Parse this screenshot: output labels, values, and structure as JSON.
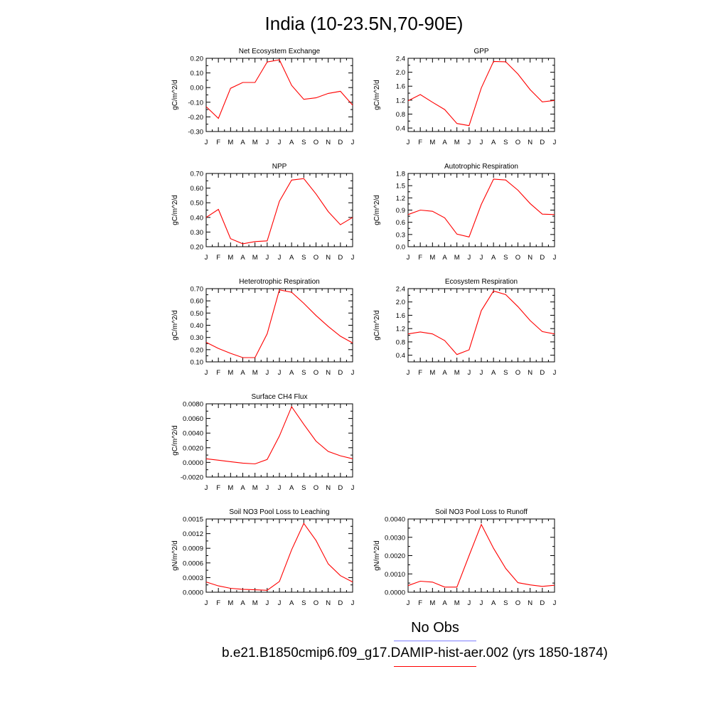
{
  "title": "India (10-23.5N,70-90E)",
  "colors": {
    "model_line": "#ff0000",
    "obs_line": "#8080ff",
    "axis": "#000000"
  },
  "legend": {
    "obs_label": "No Obs",
    "model_label": "b.e21.B1850cmip6.f09_g17.DAMIP-hist-aer.002 (yrs 1850-1874)"
  },
  "chart_data": [
    {
      "type": "line",
      "title": "Net Ecosystem Exchange",
      "ylabel": "gC/m^2/d",
      "x": [
        "J",
        "F",
        "M",
        "A",
        "M",
        "J",
        "J",
        "A",
        "S",
        "O",
        "N",
        "D",
        "J"
      ],
      "ylim": [
        -0.3,
        0.2
      ],
      "yticks": [
        "-0.30",
        "-0.20",
        "-0.10",
        "0.00",
        "0.10",
        "0.20"
      ],
      "series": [
        {
          "values": [
            -0.13,
            -0.21,
            -0.005,
            0.035,
            0.035,
            0.175,
            0.19,
            0.015,
            -0.08,
            -0.07,
            -0.04,
            -0.025,
            -0.12
          ]
        }
      ]
    },
    {
      "type": "line",
      "title": "GPP",
      "ylabel": "gC/m^2/d",
      "x": [
        "J",
        "F",
        "M",
        "A",
        "M",
        "J",
        "J",
        "A",
        "S",
        "O",
        "N",
        "D",
        "J"
      ],
      "ylim": [
        0.3,
        2.4
      ],
      "yticks": [
        "0.4",
        "0.8",
        "1.2",
        "1.6",
        "2.0",
        "2.4"
      ],
      "series": [
        {
          "values": [
            1.18,
            1.36,
            1.14,
            0.93,
            0.53,
            0.47,
            1.55,
            2.31,
            2.3,
            1.95,
            1.5,
            1.15,
            1.19
          ]
        }
      ]
    },
    {
      "type": "line",
      "title": "NPP",
      "ylabel": "gC/m^2/d",
      "x": [
        "J",
        "F",
        "M",
        "A",
        "M",
        "J",
        "J",
        "A",
        "S",
        "O",
        "N",
        "D",
        "J"
      ],
      "ylim": [
        0.2,
        0.7
      ],
      "yticks": [
        "0.20",
        "0.30",
        "0.40",
        "0.50",
        "0.60",
        "0.70"
      ],
      "series": [
        {
          "values": [
            0.4,
            0.455,
            0.255,
            0.22,
            0.235,
            0.24,
            0.51,
            0.655,
            0.665,
            0.56,
            0.44,
            0.35,
            0.4
          ]
        }
      ]
    },
    {
      "type": "line",
      "title": "Autotrophic Respiration",
      "ylabel": "gC/m^2/d",
      "x": [
        "J",
        "F",
        "M",
        "A",
        "M",
        "J",
        "J",
        "A",
        "S",
        "O",
        "N",
        "D",
        "J"
      ],
      "ylim": [
        0.0,
        1.8
      ],
      "yticks": [
        "0.0",
        "0.3",
        "0.6",
        "0.9",
        "1.2",
        "1.5",
        "1.8"
      ],
      "series": [
        {
          "values": [
            0.79,
            0.9,
            0.87,
            0.71,
            0.31,
            0.24,
            1.04,
            1.66,
            1.64,
            1.39,
            1.06,
            0.8,
            0.79
          ]
        }
      ]
    },
    {
      "type": "line",
      "title": "Heterotrophic Respiration",
      "ylabel": "gC/m^2/d",
      "x": [
        "J",
        "F",
        "M",
        "A",
        "M",
        "J",
        "J",
        "A",
        "S",
        "O",
        "N",
        "D",
        "J"
      ],
      "ylim": [
        0.1,
        0.7
      ],
      "yticks": [
        "0.10",
        "0.20",
        "0.30",
        "0.40",
        "0.50",
        "0.60",
        "0.70"
      ],
      "series": [
        {
          "values": [
            0.26,
            0.21,
            0.17,
            0.135,
            0.135,
            0.33,
            0.69,
            0.67,
            0.58,
            0.48,
            0.39,
            0.31,
            0.255
          ]
        }
      ]
    },
    {
      "type": "line",
      "title": "Ecosystem Respiration",
      "ylabel": "gC/m^2/d",
      "x": [
        "J",
        "F",
        "M",
        "A",
        "M",
        "J",
        "J",
        "A",
        "S",
        "O",
        "N",
        "D",
        "J"
      ],
      "ylim": [
        0.2,
        2.4
      ],
      "yticks": [
        "0.4",
        "0.8",
        "1.2",
        "1.6",
        "2.0",
        "2.4"
      ],
      "series": [
        {
          "values": [
            1.04,
            1.1,
            1.04,
            0.84,
            0.42,
            0.56,
            1.74,
            2.33,
            2.22,
            1.86,
            1.44,
            1.11,
            1.04
          ]
        }
      ]
    },
    {
      "type": "line",
      "title": "Surface CH4 Flux",
      "ylabel": "gC/m^2/d",
      "x": [
        "J",
        "F",
        "M",
        "A",
        "M",
        "J",
        "J",
        "A",
        "S",
        "O",
        "N",
        "D",
        "J"
      ],
      "ylim": [
        -0.002,
        0.008
      ],
      "yticks": [
        "-0.0020",
        "0.0000",
        "0.0020",
        "0.0040",
        "0.0060",
        "0.0080"
      ],
      "series": [
        {
          "values": [
            0.0005,
            0.0003,
            0.0001,
            -0.0001,
            -0.0002,
            0.0004,
            0.0036,
            0.0076,
            0.0052,
            0.0029,
            0.0015,
            0.0009,
            0.0005
          ]
        }
      ]
    },
    {
      "type": "line",
      "title": "Soil NO3 Pool Loss to Leaching",
      "ylabel": "gN/m^2/d",
      "x": [
        "J",
        "F",
        "M",
        "A",
        "M",
        "J",
        "J",
        "A",
        "S",
        "O",
        "N",
        "D",
        "J"
      ],
      "ylim": [
        0.0,
        0.0015
      ],
      "yticks": [
        "0.0000",
        "0.0003",
        "0.0006",
        "0.0009",
        "0.0012",
        "0.0015"
      ],
      "series": [
        {
          "values": [
            0.00021,
            0.00013,
            8e-05,
            6e-05,
            5e-05,
            4e-05,
            0.00022,
            0.00087,
            0.00141,
            0.00106,
            0.00058,
            0.00034,
            0.00021
          ]
        }
      ]
    },
    {
      "type": "line",
      "title": "Soil NO3 Pool Loss to Runoff",
      "ylabel": "gN/m^2/d",
      "x": [
        "J",
        "F",
        "M",
        "A",
        "M",
        "J",
        "J",
        "A",
        "S",
        "O",
        "N",
        "D",
        "J"
      ],
      "ylim": [
        0.0,
        0.004
      ],
      "yticks": [
        "0.0000",
        "0.0010",
        "0.0020",
        "0.0030",
        "0.0040"
      ],
      "series": [
        {
          "values": [
            0.00036,
            0.0006,
            0.00055,
            0.00028,
            0.00028,
            0.002,
            0.0037,
            0.0024,
            0.0013,
            0.00052,
            0.0004,
            0.00032,
            0.00038
          ]
        }
      ]
    }
  ]
}
